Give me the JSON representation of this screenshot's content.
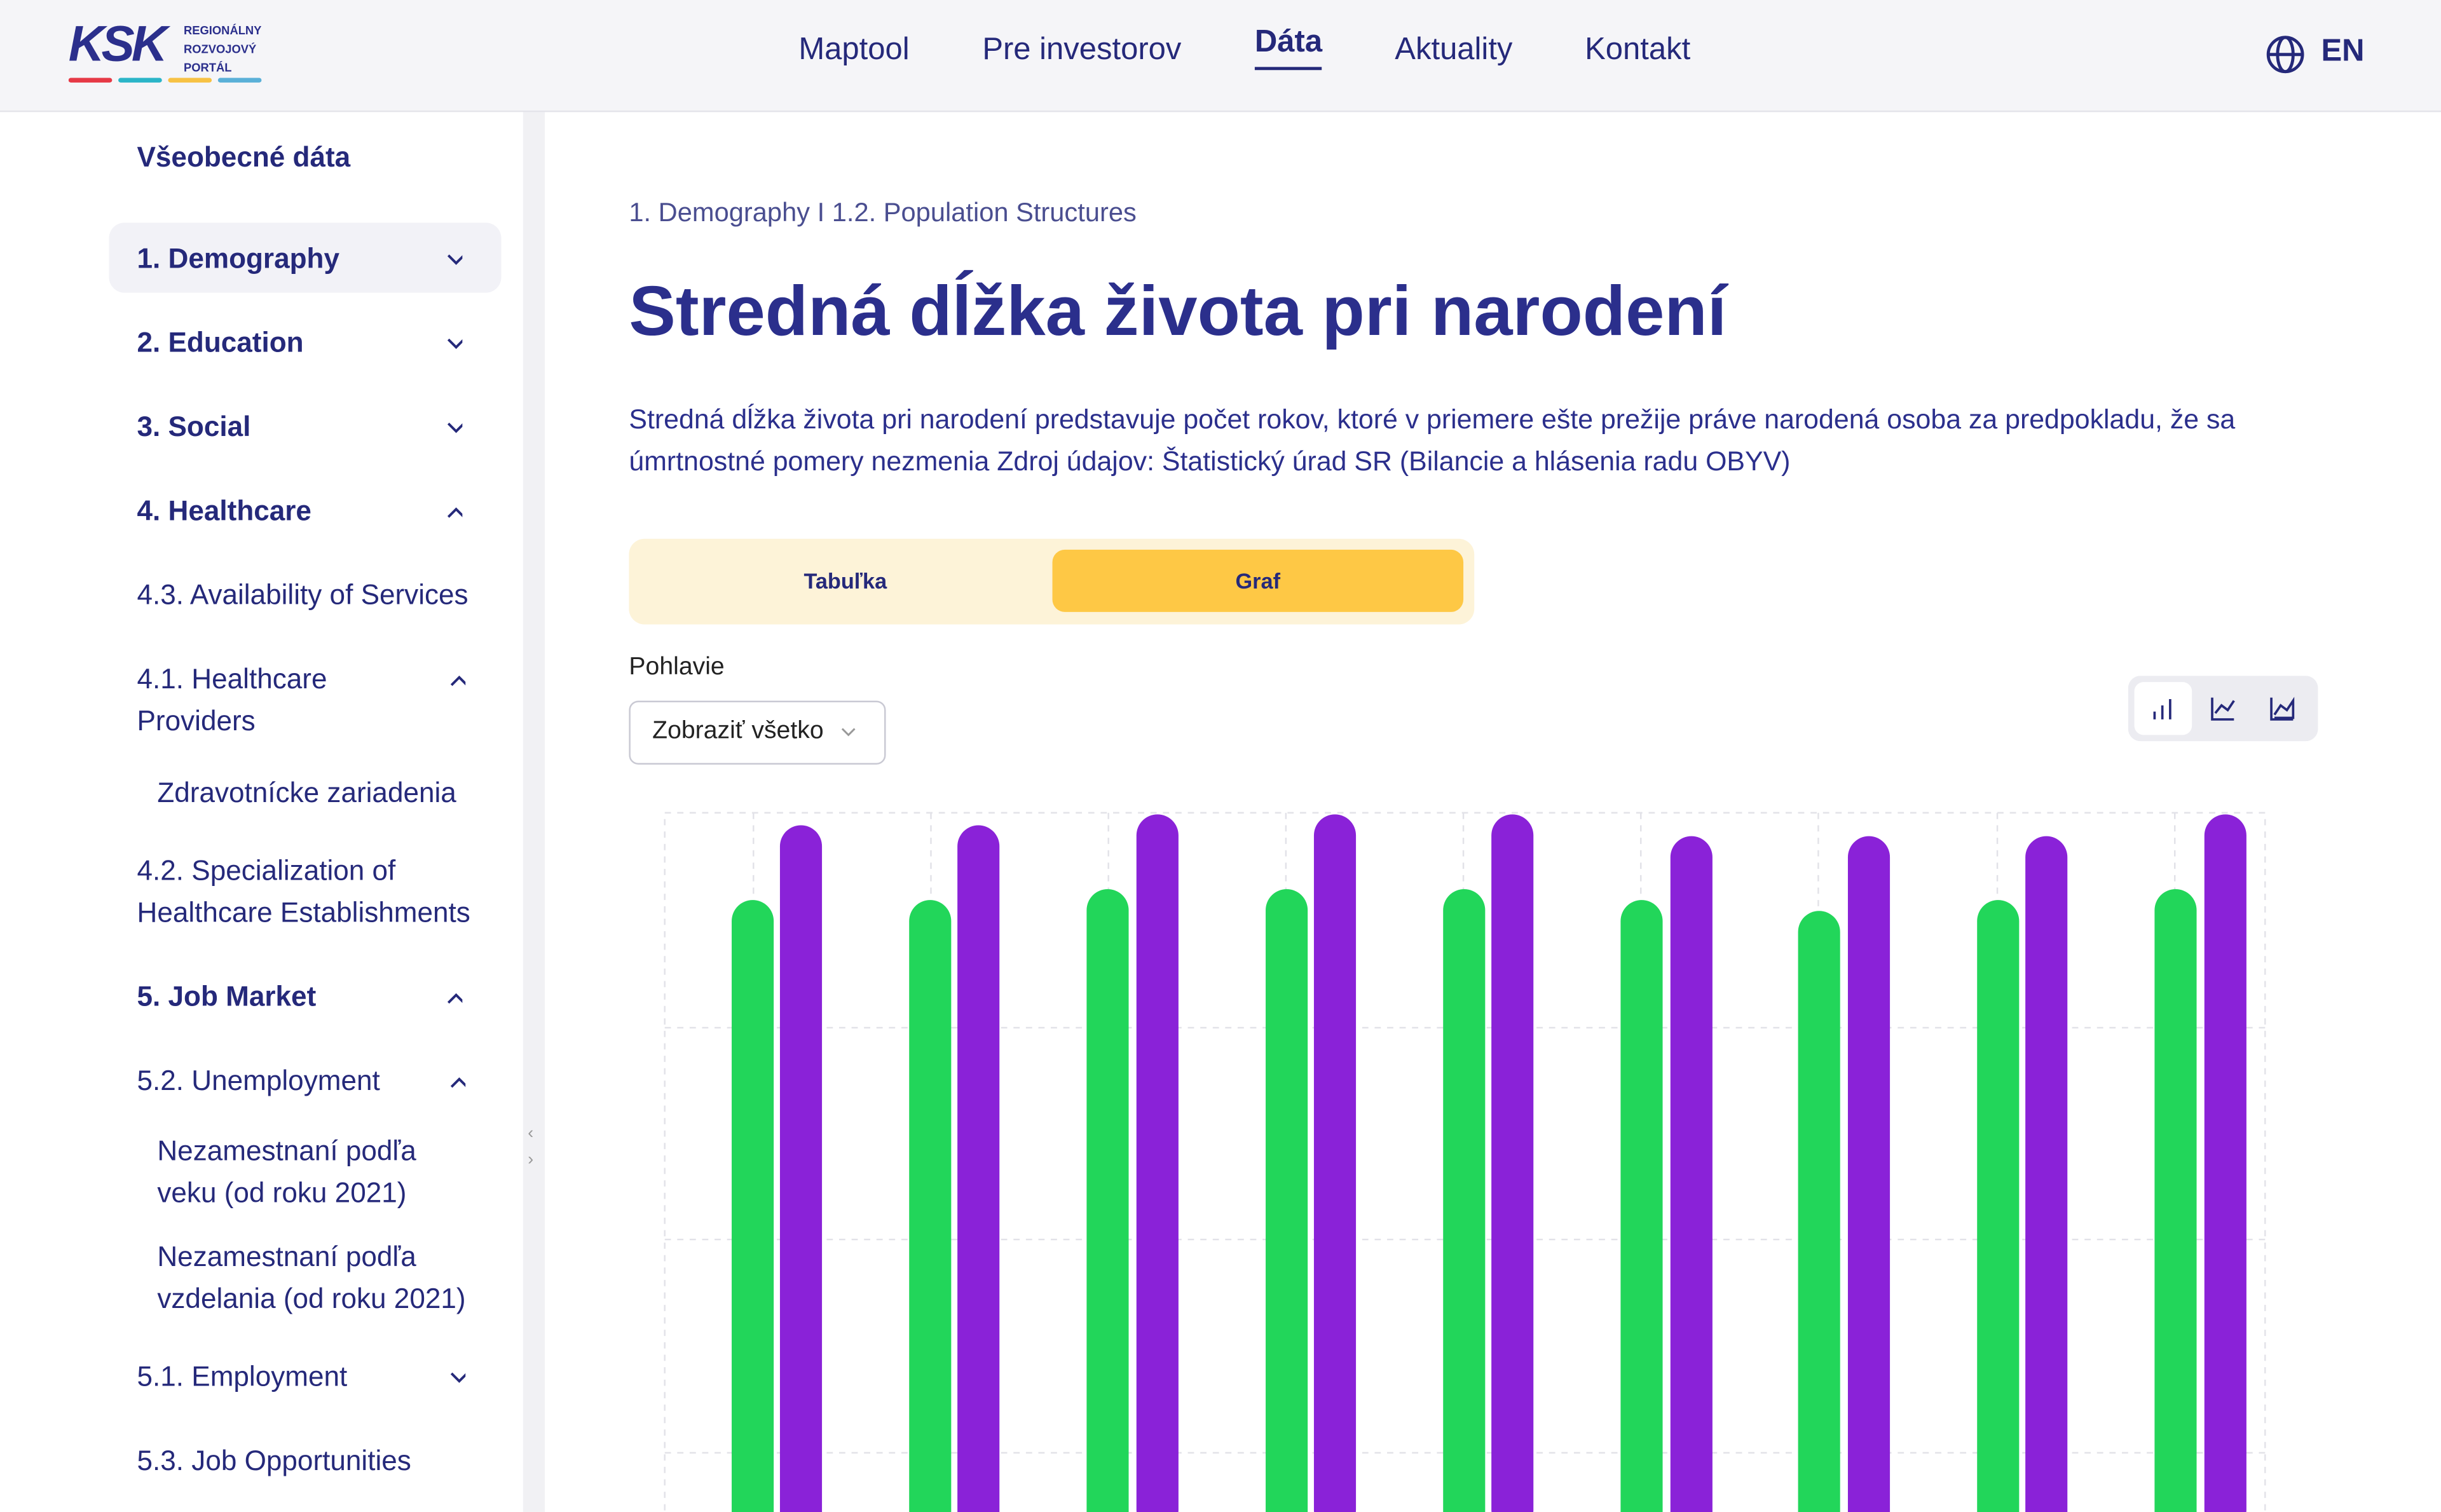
{
  "header": {
    "logo": "KSK",
    "logo_text": [
      "REGIONÁLNY",
      "ROZVOJOVÝ",
      "PORTÁL"
    ],
    "nav": [
      "Maptool",
      "Pre investorov",
      "Dáta",
      "Aktuality",
      "Kontakt"
    ],
    "language": "EN"
  },
  "sidebar": {
    "title": "Všeobecné dáta",
    "items": [
      "1. Demography",
      "2. Education",
      "3. Social",
      "4. Healthcare",
      "4.3. Availability of Services",
      "4.1. Healthcare Providers",
      "Zdravotnícke zariadenia",
      "4.2. Specialization of Healthcare Establishments",
      "5. Job Market",
      "5.2. Unemployment",
      "Nezamestnaní podľa veku (od roku 2021)",
      "Nezamestnaní podľa vzdelania (od roku 2021)",
      "5.1. Employment",
      "5.3. Job Opportunities"
    ]
  },
  "main": {
    "breadcrumb": "1. Demography I 1.2. Population Structures",
    "title": "Stredná dĺžka života pri narodení",
    "description": "Stredná dĺžka života pri narodení predstavuje počet rokov, ktoré v priemere ešte prežije práve narodená osoba za predpokladu, že sa úmrtnostné pomery nezmenia Zdroj údajov: Štatistický úrad SR (Bilancie a hlásenia radu OBYV)",
    "tabs": [
      "Tabuľka",
      "Graf"
    ],
    "filter_label": "Pohlavie",
    "filter_value": "Zobraziť všetko"
  }
}
